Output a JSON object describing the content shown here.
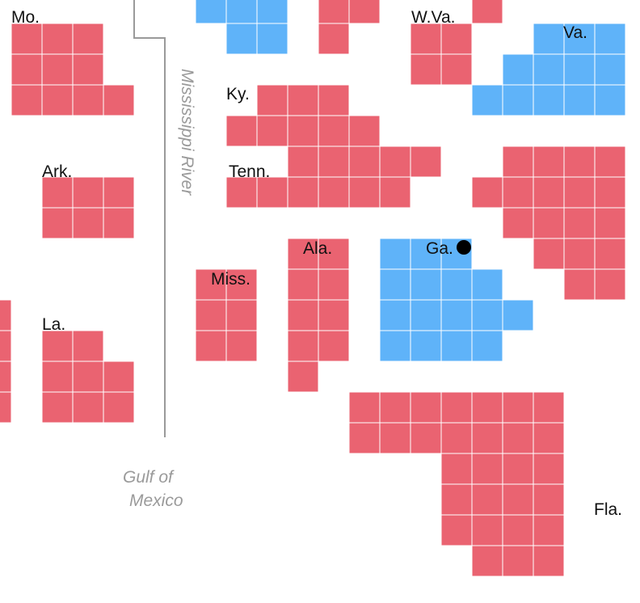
{
  "colors": {
    "republican": "#ea6371",
    "democrat": "#5fb3f9",
    "marker": "#000000",
    "annotation": "#9a9a9a"
  },
  "labels": {
    "mo": "Mo.",
    "ark": "Ark.",
    "la": "La.",
    "ky": "Ky.",
    "tenn": "Tenn.",
    "miss": "Miss.",
    "ala": "Ala.",
    "ga": "Ga.",
    "wva": "W.Va.",
    "va": "Va.",
    "fla": "Fla.",
    "river": "Mississippi River",
    "gulf_line1": "Gulf of",
    "gulf_line2": "Mexico"
  },
  "states": [
    {
      "id": "mo",
      "label": "Mo.",
      "party": "republican",
      "electoral_votes": 10
    },
    {
      "id": "ark",
      "label": "Ark.",
      "party": "republican",
      "electoral_votes": 6
    },
    {
      "id": "la",
      "label": "La.",
      "party": "republican",
      "electoral_votes": 8
    },
    {
      "id": "ky",
      "label": "Ky.",
      "party": "republican",
      "electoral_votes": 8
    },
    {
      "id": "tenn",
      "label": "Tenn.",
      "party": "republican",
      "electoral_votes": 11
    },
    {
      "id": "miss",
      "label": "Miss.",
      "party": "republican",
      "electoral_votes": 6
    },
    {
      "id": "ala",
      "label": "Ala.",
      "party": "republican",
      "electoral_votes": 9
    },
    {
      "id": "ga",
      "label": "Ga.",
      "party": "democrat",
      "electoral_votes": 16,
      "marker": "dot"
    },
    {
      "id": "wva",
      "label": "W.Va.",
      "party": "republican",
      "electoral_votes": 5
    },
    {
      "id": "va",
      "label": "Va.",
      "party": "democrat",
      "electoral_votes": 13
    },
    {
      "id": "fla",
      "label": "Fla.",
      "party": "republican",
      "electoral_votes": 29
    }
  ]
}
